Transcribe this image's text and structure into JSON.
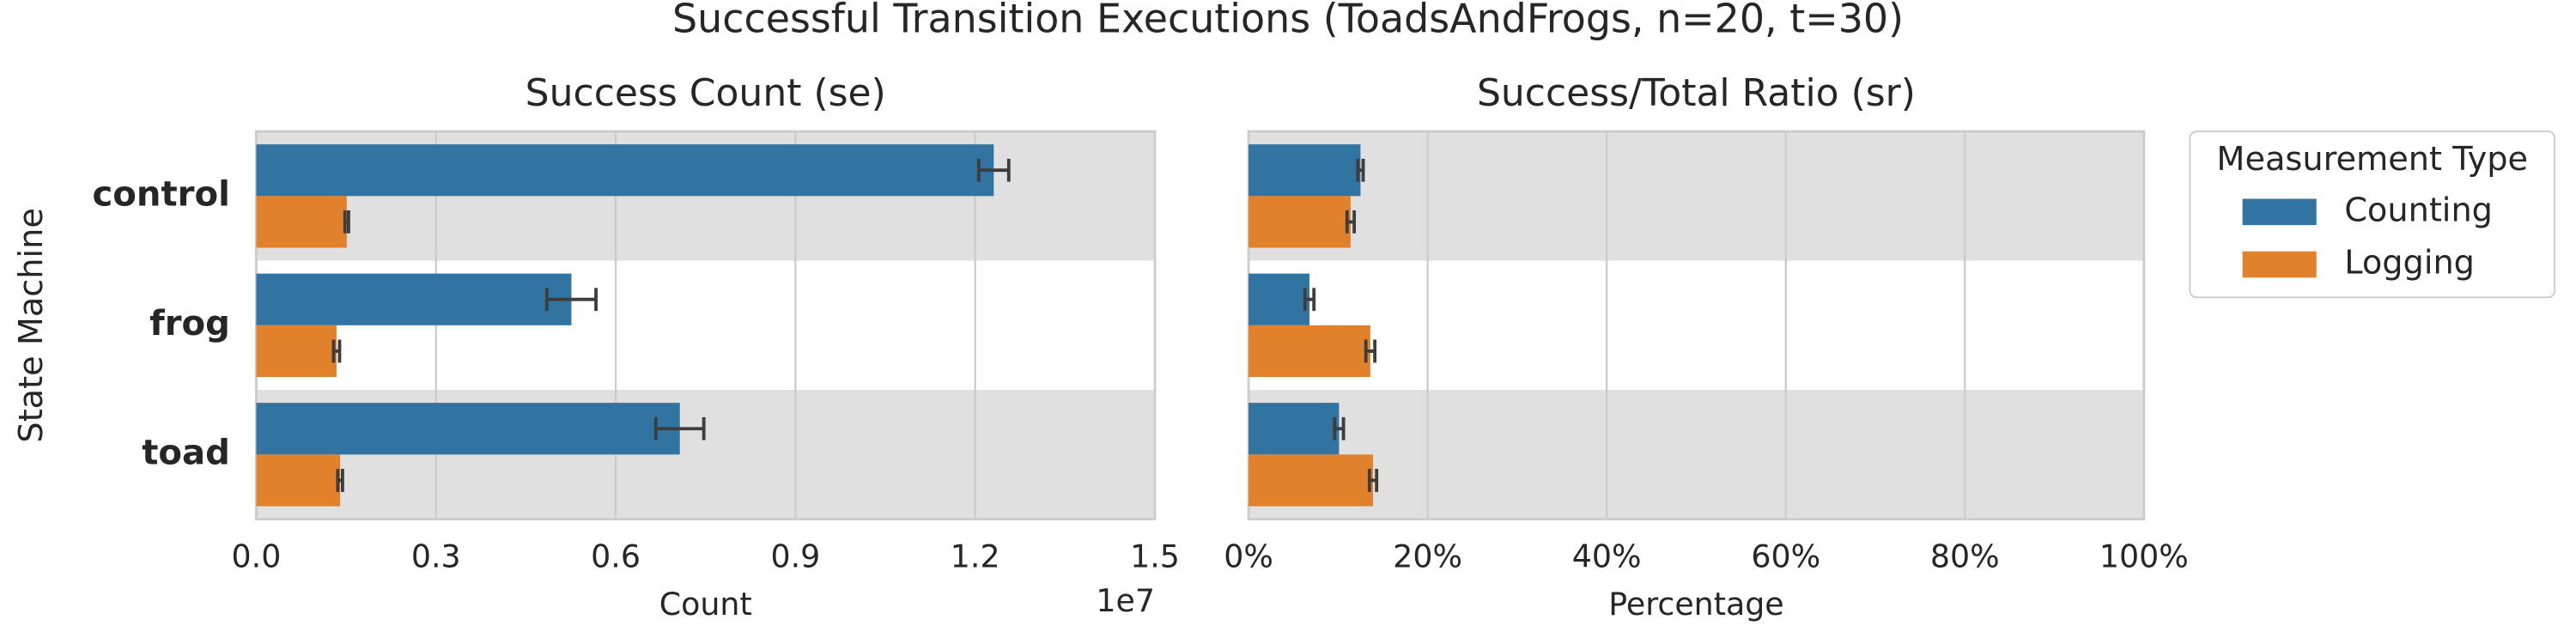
{
  "figure": {
    "title": "Successful Transition Executions (ToadsAndFrogs, n=20, t=30)",
    "ylabel": "State Machine",
    "legend_title": "Measurement Type"
  },
  "chart_data": [
    {
      "type": "bar",
      "orientation": "horizontal",
      "title": "Success Count (se)",
      "xlabel": "Count",
      "x_offset_label": "1e7",
      "categories": [
        "control",
        "frog",
        "toad"
      ],
      "series": [
        {
          "name": "Counting",
          "color": "#3274a1",
          "values": [
            12310000,
            5260000,
            7070000
          ],
          "errors": [
            250000,
            410000,
            400000
          ]
        },
        {
          "name": "Logging",
          "color": "#e1812c",
          "values": [
            1510000,
            1340000,
            1400000
          ],
          "errors": [
            30000,
            50000,
            40000
          ]
        }
      ],
      "xlim": [
        0,
        15000000
      ],
      "xticks": [
        {
          "value": 0,
          "label": "0.0"
        },
        {
          "value": 3000000,
          "label": "0.3"
        },
        {
          "value": 6000000,
          "label": "0.6"
        },
        {
          "value": 9000000,
          "label": "0.9"
        },
        {
          "value": 12000000,
          "label": "1.2"
        },
        {
          "value": 15000000,
          "label": "1.5"
        }
      ],
      "grid": true
    },
    {
      "type": "bar",
      "orientation": "horizontal",
      "title": "Success/Total Ratio (sr)",
      "xlabel": "Percentage",
      "series": [
        {
          "name": "Counting",
          "color": "#3274a1",
          "values": [
            12.5,
            6.8,
            10.1
          ],
          "errors": [
            0.3,
            0.5,
            0.5
          ]
        },
        {
          "name": "Logging",
          "color": "#e1812c",
          "values": [
            11.4,
            13.6,
            13.9
          ],
          "errors": [
            0.4,
            0.5,
            0.4
          ]
        }
      ],
      "xlim": [
        0,
        100
      ],
      "xticks": [
        {
          "value": 0,
          "label": "0%"
        },
        {
          "value": 20,
          "label": "20%"
        },
        {
          "value": 40,
          "label": "40%"
        },
        {
          "value": 60,
          "label": "60%"
        },
        {
          "value": 80,
          "label": "80%"
        },
        {
          "value": 100,
          "label": "100%"
        }
      ],
      "grid": true
    }
  ]
}
